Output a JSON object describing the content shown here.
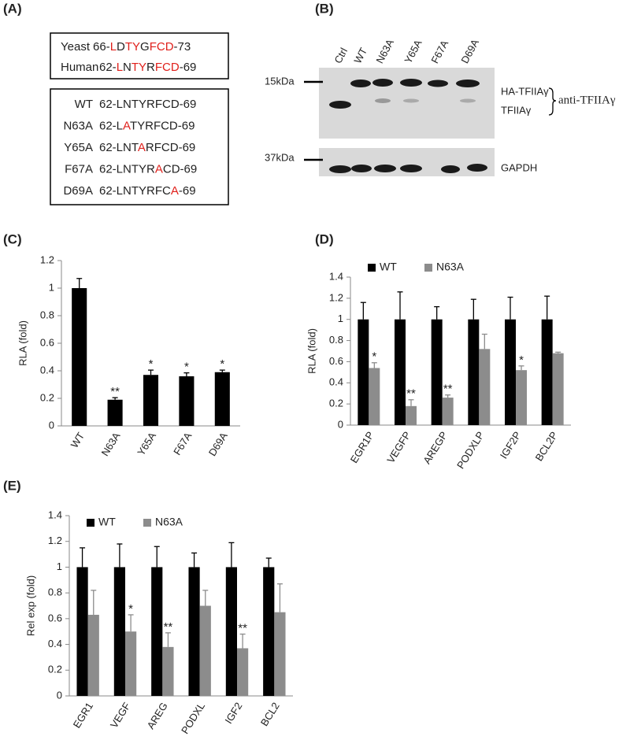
{
  "panel_labels": [
    "(A)",
    "(B)",
    "(C)",
    "(D)",
    "(E)"
  ],
  "alignment": {
    "species": [
      {
        "name": "Yeast",
        "segments": [
          {
            "text": "66-",
            "color": "#222"
          },
          {
            "text": "L",
            "color": "#e0201b"
          },
          {
            "text": "D",
            "color": "#222"
          },
          {
            "text": "TY",
            "color": "#e0201b"
          },
          {
            "text": "G",
            "color": "#222"
          },
          {
            "text": "FCD",
            "color": "#e0201b"
          },
          {
            "text": "-73",
            "color": "#222"
          }
        ]
      },
      {
        "name": "Human",
        "segments": [
          {
            "text": "62-",
            "color": "#222"
          },
          {
            "text": "L",
            "color": "#e0201b"
          },
          {
            "text": "N",
            "color": "#222"
          },
          {
            "text": "TY",
            "color": "#e0201b"
          },
          {
            "text": "R",
            "color": "#222"
          },
          {
            "text": "FCD",
            "color": "#e0201b"
          },
          {
            "text": "-69",
            "color": "#222"
          }
        ]
      }
    ],
    "mutants": [
      {
        "name": "WT",
        "segments": [
          {
            "text": "62-LNTYRFCD-69",
            "color": "#222"
          }
        ]
      },
      {
        "name": "N63A",
        "segments": [
          {
            "text": "62-L",
            "color": "#222"
          },
          {
            "text": "A",
            "color": "#e0201b"
          },
          {
            "text": "TYRFCD-69",
            "color": "#222"
          }
        ]
      },
      {
        "name": "Y65A",
        "segments": [
          {
            "text": "62-LNT",
            "color": "#222"
          },
          {
            "text": "A",
            "color": "#e0201b"
          },
          {
            "text": "RFCD-69",
            "color": "#222"
          }
        ]
      },
      {
        "name": "F67A",
        "segments": [
          {
            "text": "62-LNTYR",
            "color": "#222"
          },
          {
            "text": "A",
            "color": "#e0201b"
          },
          {
            "text": "CD-69",
            "color": "#222"
          }
        ]
      },
      {
        "name": "D69A",
        "segments": [
          {
            "text": "62-LNTYRFC",
            "color": "#222"
          },
          {
            "text": "A",
            "color": "#e0201b"
          },
          {
            "text": "-69",
            "color": "#222"
          }
        ]
      }
    ]
  },
  "blot": {
    "lanes": [
      "Ctrl",
      "WT",
      "N63A",
      "Y65A",
      "F67A",
      "D69A"
    ],
    "markers": [
      "15kDa",
      "37kDa"
    ],
    "bands": [
      "HA-TFIIAγ",
      "TFIIAγ"
    ],
    "antibody": "anti-TFIIAγ",
    "loading_control": "GAPDH"
  },
  "chart_data": [
    {
      "type": "bar",
      "y_label": "RLA (fold)",
      "categories": [
        "WT",
        "N63A",
        "Y65A",
        "F67A",
        "D69A"
      ],
      "values": [
        1,
        0.19,
        0.37,
        0.36,
        0.39
      ],
      "errors": [
        0.07,
        0.015,
        0.035,
        0.025,
        0.015
      ],
      "annotations": [
        null,
        "**",
        "*",
        "*",
        "*"
      ],
      "color": "#000000",
      "ylim": [
        0,
        1.2
      ],
      "yticks": [
        0,
        0.2,
        0.4,
        0.6,
        0.8,
        1,
        1.2
      ],
      "grid": false
    },
    {
      "type": "bar",
      "y_label": "RLA (fold)",
      "categories": [
        "EGR1P",
        "VEGFP",
        "AREGP",
        "PODXLP",
        "IGF2P",
        "BCL2P"
      ],
      "series": [
        {
          "name": "WT",
          "color": "#000000",
          "values": [
            1,
            1,
            1,
            1,
            1,
            1
          ],
          "errors": [
            0.16,
            0.26,
            0.12,
            0.19,
            0.21,
            0.22
          ],
          "annotations": [
            null,
            null,
            null,
            null,
            null,
            null
          ]
        },
        {
          "name": "N63A",
          "color": "#8c8c8c",
          "values": [
            0.54,
            0.18,
            0.26,
            0.72,
            0.52,
            0.68
          ],
          "errors": [
            0.05,
            0.06,
            0.025,
            0.14,
            0.04,
            0.01
          ],
          "annotations": [
            "*",
            "**",
            "**",
            null,
            "*",
            null
          ]
        }
      ],
      "ylim": [
        0,
        1.4
      ],
      "yticks": [
        0,
        0.2,
        0.4,
        0.6,
        0.8,
        1,
        1.2,
        1.4
      ],
      "grid": false,
      "legend": "top-left"
    },
    {
      "type": "bar",
      "y_label": "Rel exp (fold)",
      "categories": [
        "EGR1",
        "VEGF",
        "AREG",
        "PODXL",
        "IGF2",
        "BCL2"
      ],
      "series": [
        {
          "name": "WT",
          "color": "#000000",
          "values": [
            1,
            1,
            1,
            1,
            1,
            1
          ],
          "errors": [
            0.15,
            0.18,
            0.16,
            0.11,
            0.19,
            0.07
          ],
          "annotations": [
            null,
            null,
            null,
            null,
            null,
            null
          ]
        },
        {
          "name": "N63A",
          "color": "#8c8c8c",
          "values": [
            0.63,
            0.5,
            0.38,
            0.7,
            0.37,
            0.65
          ],
          "errors": [
            0.19,
            0.13,
            0.11,
            0.12,
            0.11,
            0.22
          ],
          "annotations": [
            null,
            "*",
            "**",
            null,
            "**",
            null
          ]
        }
      ],
      "ylim": [
        0,
        1.4
      ],
      "yticks": [
        0,
        0.2,
        0.4,
        0.6,
        0.8,
        1,
        1.2,
        1.4
      ],
      "grid": false,
      "legend": "top-left"
    }
  ]
}
